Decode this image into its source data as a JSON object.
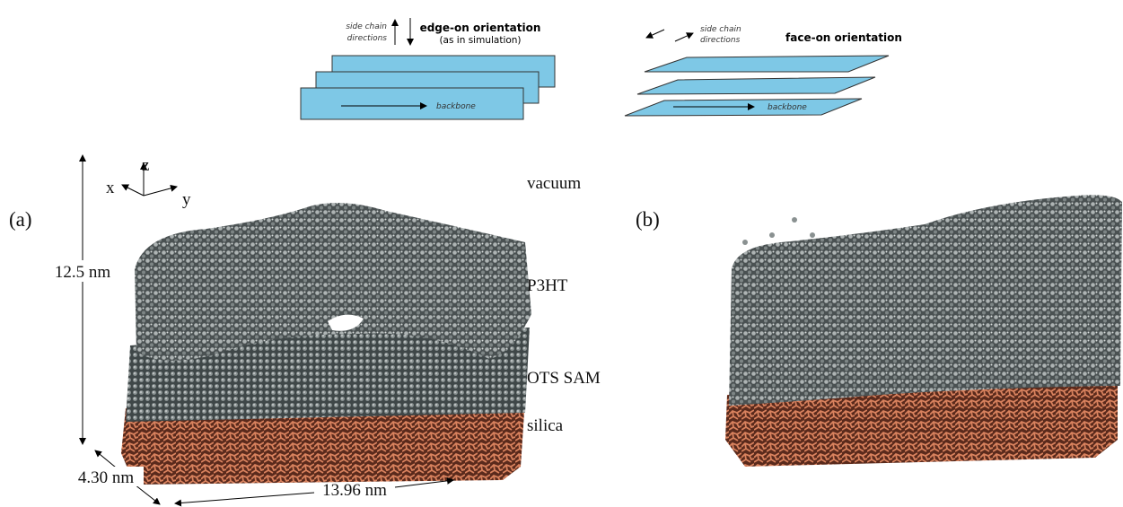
{
  "schematic": {
    "edge_on": {
      "side_chain_label": [
        "side chain",
        "directions"
      ],
      "title": "edge-on orientation",
      "subtitle": "(as in simulation)",
      "backbone": "backbone"
    },
    "face_on": {
      "side_chain_label": [
        "side chain",
        "directions"
      ],
      "title": "face-on orientation",
      "backbone": "backbone"
    }
  },
  "panels": [
    {
      "label": "(a)"
    },
    {
      "label": "(b)"
    }
  ],
  "axes": {
    "x": "x",
    "y": "y",
    "z": "z"
  },
  "layers": [
    "vacuum",
    "P3HT",
    "OTS SAM",
    "silica"
  ],
  "dimensions": {
    "height": "12.5 nm",
    "depth": "4.30 nm",
    "width": "13.96 nm"
  }
}
